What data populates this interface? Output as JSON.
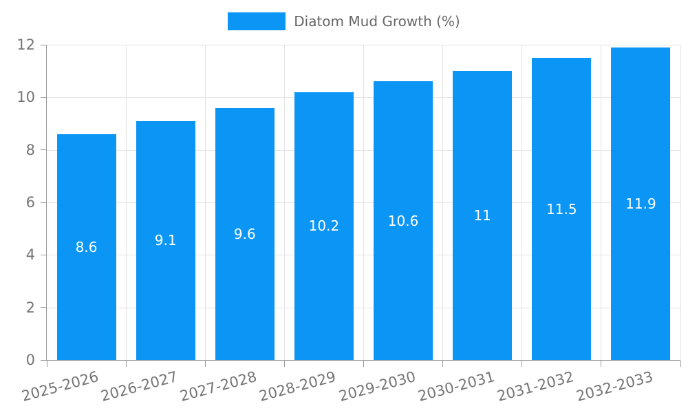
{
  "legend": {
    "label": "Diatom Mud Growth (%)"
  },
  "chart_data": {
    "type": "bar",
    "title": "Diatom Mud Growth (%)",
    "categories": [
      "2025-2026",
      "2026-2027",
      "2027-2028",
      "2028-2029",
      "2029-2030",
      "2030-2031",
      "2031-2032",
      "2032-2033"
    ],
    "values": [
      8.6,
      9.1,
      9.6,
      10.2,
      10.6,
      11,
      11.5,
      11.9
    ],
    "value_labels": [
      "8.6",
      "9.1",
      "9.6",
      "10.2",
      "10.6",
      "11",
      "11.5",
      "11.9"
    ],
    "xlabel": "",
    "ylabel": "",
    "ylim": [
      0,
      12
    ],
    "yticks": [
      0,
      2,
      4,
      6,
      8,
      10,
      12
    ],
    "grid": true,
    "legend_position": "top-center",
    "bar_color": "#0b96f5",
    "value_label_color": "#ffffff",
    "axis_color": "#999999",
    "gridline_color": "#e3e3e3",
    "tick_label_color": "#757575",
    "legend_text_color": "#666666",
    "x_label_rotation_deg": -15
  }
}
